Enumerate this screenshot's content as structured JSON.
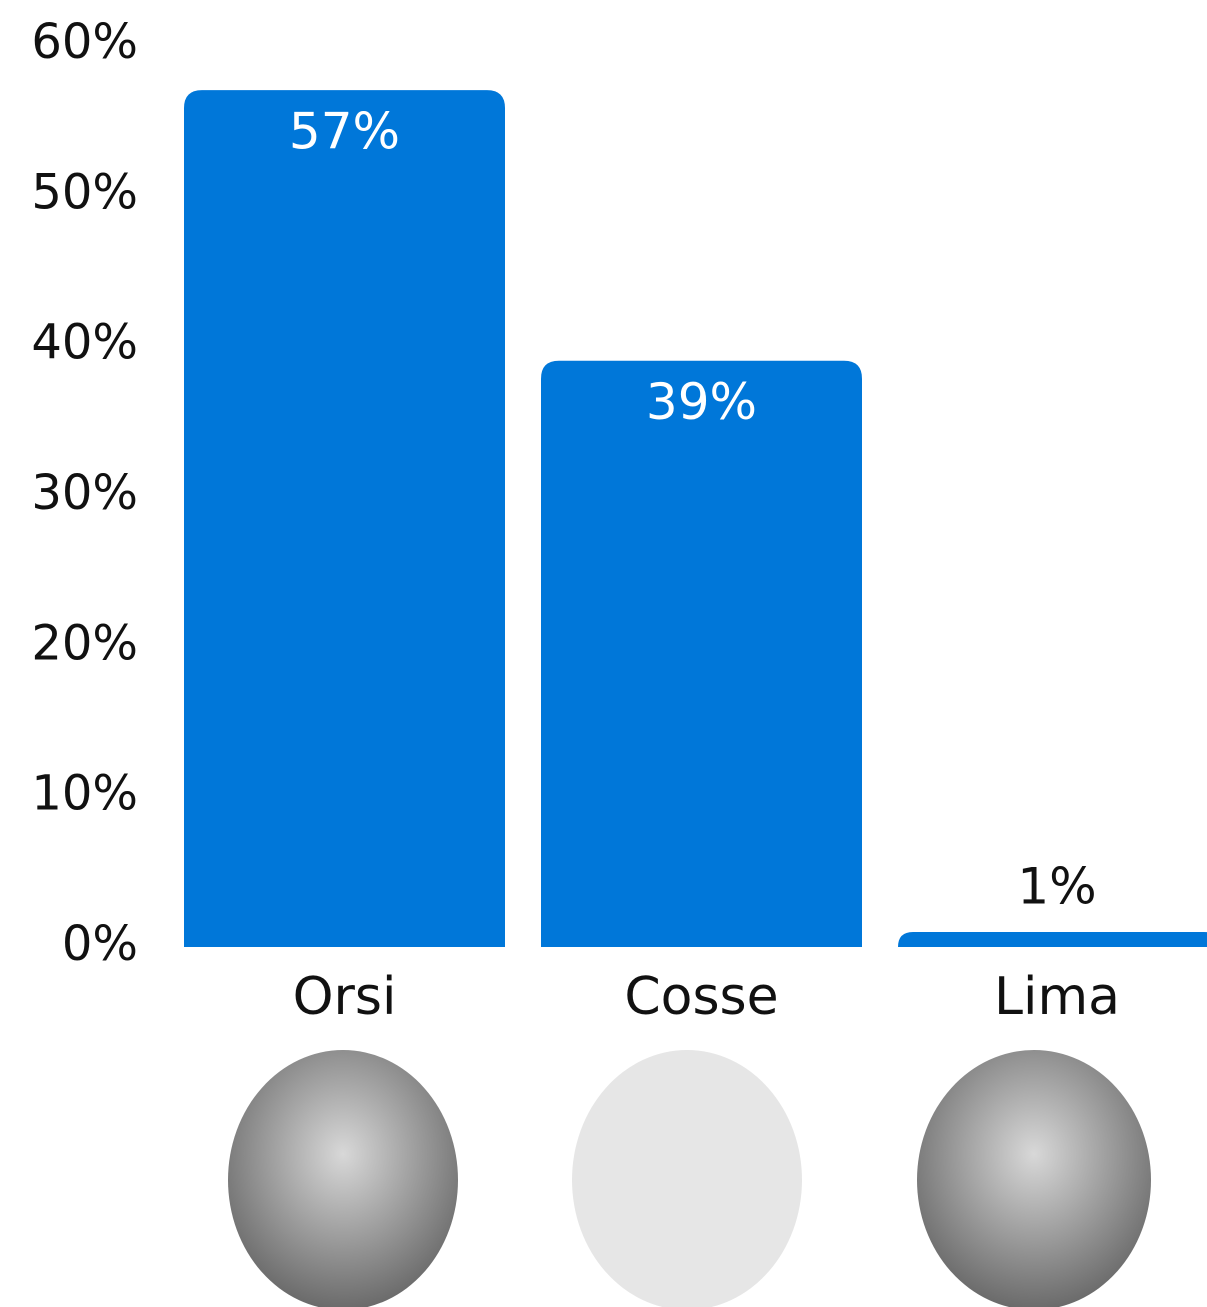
{
  "chart_data": {
    "type": "bar",
    "categories": [
      "Orsi",
      "Cosse",
      "Lima"
    ],
    "values": [
      57,
      39,
      1
    ],
    "value_labels": [
      "57%",
      "39%",
      "1%"
    ],
    "color": "#0077d9",
    "ylim": [
      0,
      60
    ],
    "yticks": [
      {
        "value": 0,
        "label": "0%"
      },
      {
        "value": 10,
        "label": "10%"
      },
      {
        "value": 20,
        "label": "20%"
      },
      {
        "value": 30,
        "label": "30%"
      },
      {
        "value": 40,
        "label": "40%"
      },
      {
        "value": 50,
        "label": "50%"
      },
      {
        "value": 60,
        "label": "60%"
      }
    ],
    "grid": false
  }
}
